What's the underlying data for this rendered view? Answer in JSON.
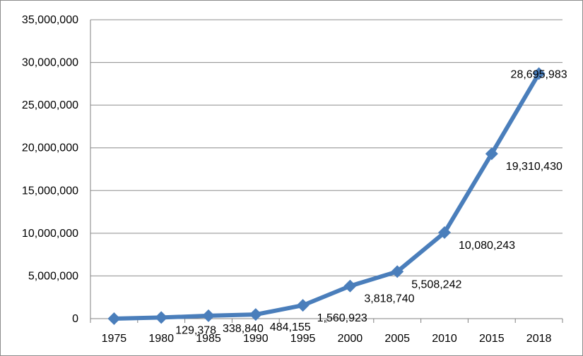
{
  "chart_data": {
    "type": "line",
    "title": "",
    "xlabel": "",
    "ylabel": "",
    "categories": [
      "1975",
      "1980",
      "1985",
      "1990",
      "1995",
      "2000",
      "2005",
      "2010",
      "2015",
      "2018"
    ],
    "series": [
      {
        "values": [
          0,
          129378,
          338840,
          484155,
          1560923,
          3818740,
          5508242,
          10080243,
          19310430,
          28695983
        ],
        "data_labels": [
          "",
          "129,378",
          "338,840",
          "484,155",
          "1,560,923",
          "3,818,740",
          "5,508,242",
          "10,080,243",
          "19,310,430",
          "28,695,983"
        ],
        "color": "#4a7ebb",
        "marker": "diamond"
      }
    ],
    "ylim": [
      0,
      35000000
    ],
    "yticks": [
      0,
      5000000,
      10000000,
      15000000,
      20000000,
      25000000,
      30000000,
      35000000
    ],
    "ytick_labels": [
      "0",
      "5,000,000",
      "10,000,000",
      "15,000,000",
      "20,000,000",
      "25,000,000",
      "30,000,000",
      "35,000,000"
    ],
    "grid": true,
    "legend": "none"
  }
}
